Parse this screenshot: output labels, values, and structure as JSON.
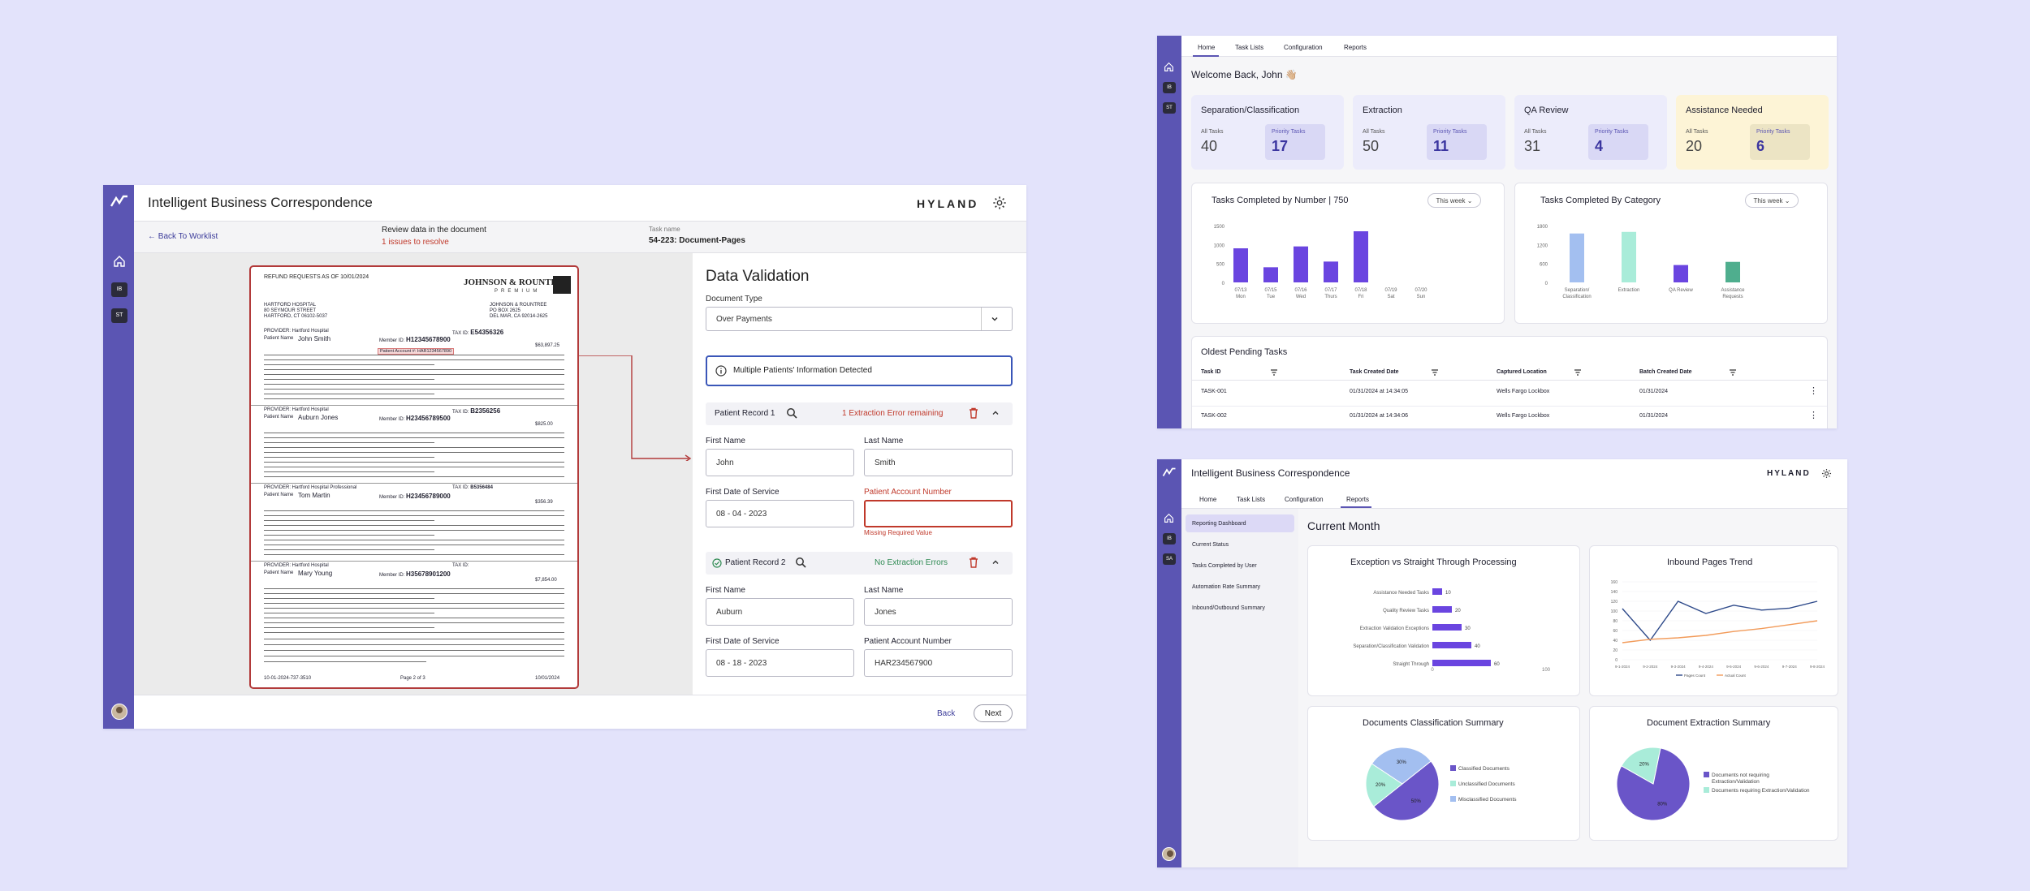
{
  "colors": {
    "brand": "#5b55b3",
    "bar_purple": "#6a45e0",
    "bar_blue": "#a3bff0",
    "bar_teal": "#a9ecd9",
    "bar_green": "#4fae8e",
    "error": "#c0392b",
    "success": "#2e8a52",
    "assist": "#fdf4d6"
  },
  "validation": {
    "app_title": "Intelligent Business Correspondence",
    "brand": "HYLAND",
    "rail_chips": [
      "IB",
      "ST"
    ],
    "back_link": "Back To Worklist",
    "review_title": "Review data in the document",
    "issues": "1 issues to resolve",
    "task_label": "Task name",
    "task_name": "54-223: Document-Pages",
    "panel_title": "Data Validation",
    "doc_type_label": "Document Type",
    "doc_type_value": "Over Payments",
    "alert": "Multiple Patients' Information Detected",
    "record1": {
      "title": "Patient Record 1",
      "status": "1 Extraction Error remaining",
      "first_name_label": "First Name",
      "first_name": "John",
      "last_name_label": "Last Name",
      "last_name": "Smith",
      "dos_label": "First Date of Service",
      "dos": "08 - 04 - 2023",
      "account_label": "Patient Account Number",
      "account": "",
      "error": "Missing Required Value"
    },
    "record2": {
      "title": "Patient Record 2",
      "status": "No Extraction Errors",
      "first_name_label": "First Name",
      "first_name": "Auburn",
      "last_name_label": "Last Name",
      "last_name": "Jones",
      "dos_label": "First Date of Service",
      "dos": "08 - 18 - 2023",
      "account_label": "Patient Account Number",
      "account": "HAR234567900"
    },
    "back_button": "Back",
    "next_button": "Next",
    "document": {
      "heading": "REFUND REQUESTS AS OF 10/01/2024",
      "company": "JOHNSON & ROUNTREE",
      "company_sub": "PREMIUM",
      "from": [
        "HARTFORD HOSPITAL",
        "80 SEYMOUR STREET",
        "HARTFORD, CT 06102-5037"
      ],
      "to": [
        "JOHNSON & ROUNTREE",
        "PO BOX 2625",
        "DEL MAR, CA 92014-2625"
      ],
      "tax_label": "TAX ID:",
      "entries": [
        {
          "provider": "PROVIDER: Hartford Hospital",
          "tax": "E54356326",
          "name_label": "Patient Name",
          "name": "John Smith",
          "member_label": "Member ID:",
          "member": "H12345678900",
          "highlight": "Patient Account #: HAR1234567890",
          "amount": "$63,897.25"
        },
        {
          "provider": "PROVIDER: Hartford Hospital",
          "tax": "B2356256",
          "name_label": "Patient Name",
          "name": "Auburn Jones",
          "member_label": "Member ID:",
          "member": "H23456789500",
          "amount": "$825.00"
        },
        {
          "provider": "PROVIDER: Hartford Hospital Professional",
          "tax": "B5356484",
          "name_label": "Patient Name",
          "name": "Tom Martin",
          "member_label": "Member ID:",
          "member": "H23456789000",
          "amount": "$356.39"
        },
        {
          "provider": "PROVIDER: Hartford Hospital",
          "tax": "",
          "name_label": "Patient Name",
          "name": "Mary Young",
          "member_label": "Member ID:",
          "member": "H35678901200",
          "amount": "$7,854.00"
        }
      ],
      "footer_ids": "10-01-2024-737-3510",
      "footer_page": "Page 2 of 3",
      "footer_date": "10/01/2024"
    }
  },
  "home": {
    "tabs": [
      "Home",
      "Task Lists",
      "Configuration",
      "Reports"
    ],
    "rail_chips": [
      "IB",
      "ST"
    ],
    "welcome": "Welcome Back, John 👋🏼",
    "cards": [
      {
        "title": "Separation/Classification",
        "all_label": "All Tasks",
        "all": "40",
        "prio_label": "Priority Tasks",
        "prio": "17"
      },
      {
        "title": "Extraction",
        "all_label": "All Tasks",
        "all": "50",
        "prio_label": "Priority Tasks",
        "prio": "11"
      },
      {
        "title": "QA Review",
        "all_label": "All Tasks",
        "all": "31",
        "prio_label": "Priority Tasks",
        "prio": "4"
      },
      {
        "title": "Assistance Needed",
        "all_label": "All Tasks",
        "all": "20",
        "prio_label": "Priority Tasks",
        "prio": "6"
      }
    ],
    "chart1_title": "Tasks Completed by Number | 750",
    "chart2_title": "Tasks Completed By Category",
    "week_filter": "This week",
    "table_title": "Oldest Pending Tasks",
    "table_headers": [
      "Task ID",
      "Task Created Date",
      "Captured Location",
      "Batch Created Date"
    ],
    "table_rows": [
      [
        "TASK-001",
        "01/31/2024 at 14:34:05",
        "Wells Fargo Lockbox",
        "01/31/2024"
      ],
      [
        "TASK-002",
        "01/31/2024 at 14:34:06",
        "Wells Fargo Lockbox",
        "01/31/2024"
      ]
    ]
  },
  "chart_data": [
    {
      "type": "bar",
      "title": "Tasks Completed by Number | 750",
      "ylim": [
        0,
        1500
      ],
      "yticks": [
        "1500",
        "1000",
        "500",
        "0"
      ],
      "categories": [
        "07/13",
        "07/15",
        "07/16",
        "07/17",
        "07/18",
        "07/19",
        "07/20"
      ],
      "days": [
        "Mon",
        "Tue",
        "Wed",
        "Thurs",
        "Fri",
        "Sat",
        "Sun"
      ],
      "values": [
        900,
        400,
        950,
        550,
        1350,
        0,
        0
      ]
    },
    {
      "type": "bar",
      "title": "Tasks Completed By Category",
      "ylim": [
        0,
        1800
      ],
      "yticks": [
        "1800",
        "1200",
        "600",
        "0"
      ],
      "categories": [
        "Separation/ Classification",
        "Extraction",
        "QA Review",
        "Assistance Requests"
      ],
      "values": [
        1550,
        1600,
        550,
        650
      ]
    },
    {
      "type": "bar",
      "title": "Exception vs Straight Through Processing",
      "categories": [
        "Assistance Needed Tasks",
        "Quality Review Tasks",
        "Extraction Validation Exceptions",
        "Separation/Classification Validation",
        "Straight Through"
      ],
      "values": [
        10,
        20,
        30,
        40,
        60
      ],
      "xlim": [
        0,
        100
      ],
      "xticks": [
        "0",
        "100"
      ]
    },
    {
      "type": "line",
      "title": "Inbound Pages Trend",
      "yticks": [
        "160",
        "140",
        "120",
        "100",
        "80",
        "60",
        "40",
        "20",
        "0"
      ],
      "x": [
        "9-1-2024",
        "9-2-2024",
        "9-3-2024",
        "9-4-2024",
        "9-5-2024",
        "9-6-2024",
        "9-7-2024",
        "9-8-2024"
      ],
      "series": [
        {
          "name": "Pages Count",
          "values": [
            105,
            40,
            120,
            95,
            112,
            102,
            106,
            120
          ]
        },
        {
          "name": "Actual Count",
          "values": [
            35,
            42,
            45,
            50,
            58,
            64,
            72,
            80
          ]
        }
      ]
    },
    {
      "type": "pie",
      "title": "Documents Classification Summary",
      "labels": [
        "Classified Documents",
        "Unclassified Documents",
        "Misclassified Documents"
      ],
      "values": [
        50,
        20,
        30
      ]
    },
    {
      "type": "pie",
      "title": "Document Extraction Summary",
      "labels": [
        "Documents not requiring Extraction/Validation",
        "Documents requiring Extraction/Validation"
      ],
      "values": [
        80,
        20
      ]
    }
  ],
  "reports": {
    "app_title": "Intelligent Business Correspondence",
    "brand": "HYLAND",
    "tabs": [
      "Home",
      "Task Lists",
      "Configuration",
      "Reports"
    ],
    "rail_chips": [
      "IB",
      "SA"
    ],
    "sidebar": [
      "Reporting Dashboard",
      "Current Status",
      "Tasks Completed by User",
      "Automation Rate Summary",
      "Inbound/Outbound Summary"
    ],
    "heading": "Current Month",
    "pie1_pcts": [
      "50%",
      "20%",
      "30%"
    ],
    "pie2_pcts": [
      "80%",
      "20%"
    ]
  }
}
